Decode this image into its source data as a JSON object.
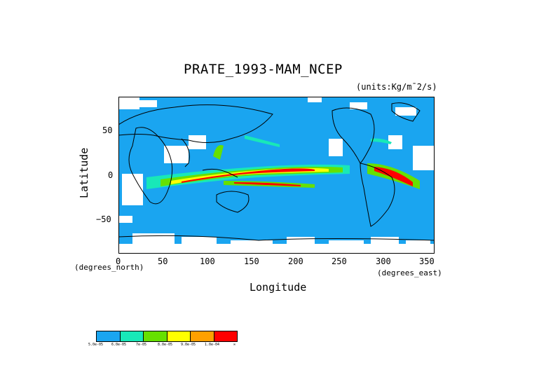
{
  "title": "PRATE_1993-MAM_NCEP",
  "units": "(units:Kg/m¯2/s)",
  "x_axis": {
    "label": "Longitude",
    "unit_label": "(degrees_east)",
    "ticks": [
      "0",
      "50",
      "100",
      "150",
      "200",
      "250",
      "300",
      "350"
    ],
    "tick_values": [
      0,
      50,
      100,
      150,
      200,
      250,
      300,
      350
    ]
  },
  "y_axis": {
    "label": "Latitude",
    "unit_label": "(degrees_north)",
    "ticks": [
      "50",
      "0",
      "−50"
    ],
    "tick_values": [
      50,
      0,
      -50
    ]
  },
  "map_extent": {
    "lon": [
      0,
      360
    ],
    "lat": [
      -90,
      90
    ]
  },
  "colorbar": {
    "labels": [
      "5.0e-05",
      "6.0e-05",
      "7e-05",
      "8.0e-05",
      "9.0e-05",
      "1.0e-04",
      "∞"
    ],
    "colors": [
      "#1aa5f0",
      "#18e8b8",
      "#66e000",
      "#ffff00",
      "#ffa000",
      "#ff0000"
    ]
  },
  "colors": {
    "background_field": "#1aa5f0",
    "missing": "#ffffff",
    "coastline": "#000000"
  }
}
